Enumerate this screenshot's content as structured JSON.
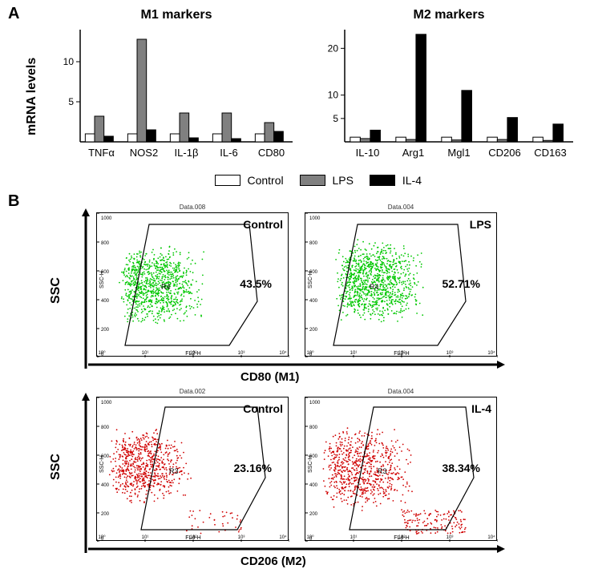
{
  "panelA": {
    "label": "A",
    "ylabel": "mRNA levels",
    "chart1": {
      "title": "M1 markers",
      "ylim": [
        0,
        14
      ],
      "yticks": [
        5,
        10
      ],
      "categories": [
        "TNFα",
        "NOS2",
        "IL-1β",
        "IL-6",
        "CD80"
      ],
      "series": [
        {
          "name": "Control",
          "color": "#ffffff",
          "values": [
            1.0,
            1.0,
            1.0,
            1.0,
            1.0
          ]
        },
        {
          "name": "LPS",
          "color": "#808080",
          "values": [
            3.2,
            12.8,
            3.6,
            3.6,
            2.4
          ]
        },
        {
          "name": "IL-4",
          "color": "#000000",
          "values": [
            0.7,
            1.5,
            0.5,
            0.4,
            1.3
          ]
        }
      ]
    },
    "chart2": {
      "title": "M2 markers",
      "ylim": [
        0,
        24
      ],
      "yticks": [
        5,
        10,
        20
      ],
      "categories": [
        "IL-10",
        "Arg1",
        "Mgl1",
        "CD206",
        "CD163"
      ],
      "series": [
        {
          "name": "Control",
          "color": "#ffffff",
          "values": [
            1.0,
            1.0,
            1.0,
            1.0,
            1.0
          ]
        },
        {
          "name": "LPS",
          "color": "#808080",
          "values": [
            0.7,
            0.5,
            0.4,
            0.5,
            0.3
          ]
        },
        {
          "name": "IL-4",
          "color": "#000000",
          "values": [
            2.5,
            23.0,
            11.0,
            5.2,
            3.8
          ]
        }
      ]
    },
    "legend": [
      {
        "label": "Control",
        "color": "#ffffff"
      },
      {
        "label": "LPS",
        "color": "#808080"
      },
      {
        "label": "IL-4",
        "color": "#000000"
      }
    ]
  },
  "panelB": {
    "label": "B",
    "top_xlabel": "CD80 (M1)",
    "bottom_xlabel": "CD206 (M2)",
    "ylabel": "SSC",
    "plots": [
      {
        "title": "Control",
        "data_file": "Data.008",
        "pct": "43.5%",
        "color": "#00c800",
        "gate": "R4",
        "fl": "FL2-H"
      },
      {
        "title": "LPS",
        "data_file": "Data.004",
        "pct": "52.71%",
        "color": "#00c800",
        "gate": "R4",
        "fl": "FL2-H"
      },
      {
        "title": "Control",
        "data_file": "Data.002",
        "pct": "23.16%",
        "color": "#d00000",
        "gate": "R3",
        "fl": "FL4-H"
      },
      {
        "title": "IL-4",
        "data_file": "Data.004",
        "pct": "38.34%",
        "color": "#d00000",
        "gate": "R3",
        "fl": "FL4-H"
      }
    ],
    "ssc_ticks": [
      "0",
      "200",
      "400",
      "600",
      "800",
      "1000"
    ],
    "x_decades": [
      "10⁰",
      "10¹",
      "10²",
      "10³",
      "10⁴"
    ]
  },
  "style": {
    "bar_border": "#000000",
    "axis_color": "#000000",
    "background": "#ffffff"
  }
}
